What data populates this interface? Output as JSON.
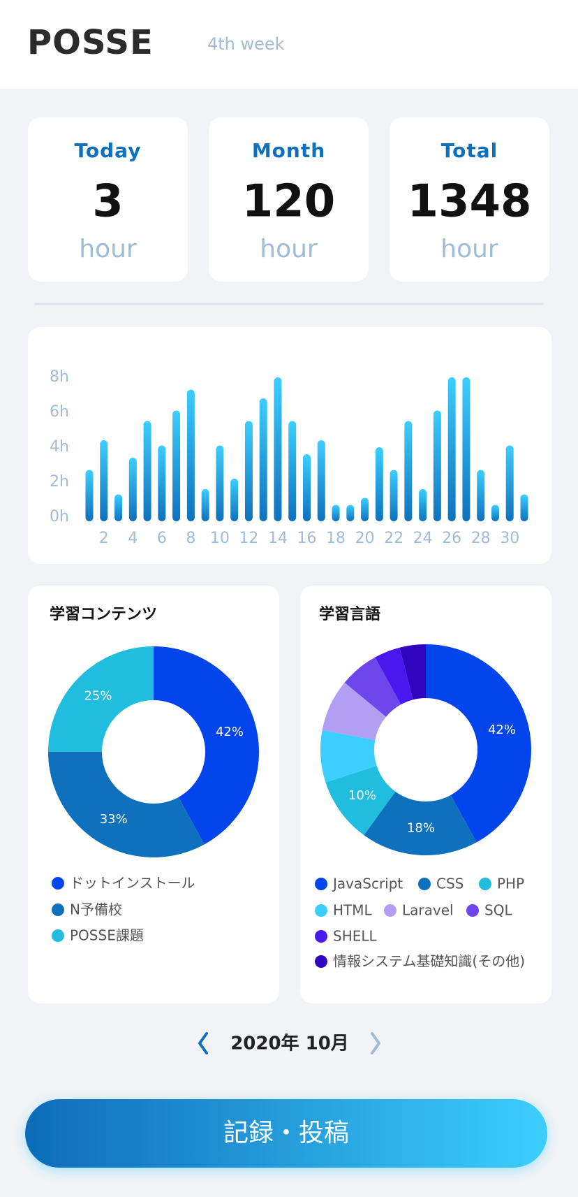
{
  "header": {
    "logo": "POSSE",
    "week": "4th week"
  },
  "stats": [
    {
      "label": "Today",
      "value": 3,
      "unit": "hour"
    },
    {
      "label": "Month",
      "value": 120,
      "unit": "hour"
    },
    {
      "label": "Total",
      "value": 1348,
      "unit": "hour"
    }
  ],
  "bar_chart": {
    "type": "bar",
    "categories": [
      null,
      "2",
      null,
      "4",
      null,
      "6",
      null,
      "8",
      null,
      "10",
      null,
      "12",
      null,
      "14",
      null,
      "16",
      null,
      "18",
      null,
      "20",
      null,
      "22",
      null,
      "24",
      null,
      "26",
      null,
      "28",
      null,
      "30",
      null
    ],
    "values": [
      2.7,
      4.4,
      1.3,
      3.4,
      5.5,
      4.1,
      6.1,
      7.3,
      1.6,
      4.1,
      2.2,
      5.5,
      6.8,
      8,
      5.5,
      3.6,
      4.4,
      0.7,
      0.7,
      1.1,
      4,
      2.7,
      5.5,
      1.6,
      6.1,
      8,
      8,
      2.7,
      0.7,
      4.1,
      1.3
    ],
    "ylim": [
      0,
      8
    ],
    "yticks": [
      {
        "value": 0,
        "label": "0h"
      },
      {
        "value": 2,
        "label": "2h"
      },
      {
        "value": 4,
        "label": "4h"
      },
      {
        "value": 6,
        "label": "6h"
      },
      {
        "value": 8,
        "label": "8h"
      }
    ],
    "color_top": "#3ccefe",
    "color_bottom": "#0f71bd"
  },
  "content_chart": {
    "type": "donut",
    "title": "学習コンテンツ",
    "categories": [
      "ドットインストール",
      "N予備校",
      "POSSE課題"
    ],
    "values": [
      42,
      33,
      25
    ],
    "value_labels": [
      "42%",
      "33%",
      "25%"
    ],
    "colors": [
      "#0345ec",
      "#0f71bd",
      "#20bdde"
    ]
  },
  "language_chart": {
    "type": "donut",
    "title": "学習言語",
    "categories": [
      "JavaScript",
      "CSS",
      "PHP",
      "HTML",
      "Laravel",
      "SQL",
      "SHELL",
      "情報システム基礎知識(その他)"
    ],
    "values": [
      42,
      18,
      10,
      8,
      8,
      6,
      4,
      4
    ],
    "value_labels": [
      "42%",
      "18%",
      "10%",
      null,
      null,
      null,
      null,
      null
    ],
    "colors": [
      "#0345ec",
      "#0f71bd",
      "#20bdde",
      "#3ccefe",
      "#b29ef3",
      "#6d46ec",
      "#4a17ef",
      "#3105c0"
    ]
  },
  "month_nav": {
    "label": "2020年 10月"
  },
  "button": {
    "label": "記録・投稿"
  }
}
